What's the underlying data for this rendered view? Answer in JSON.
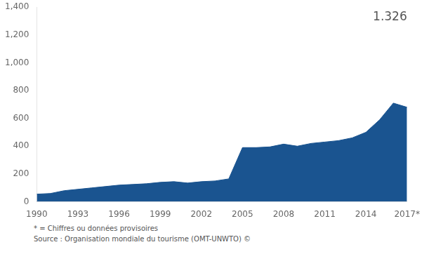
{
  "chart_data": {
    "type": "area",
    "x": [
      1990,
      1991,
      1992,
      1993,
      1994,
      1995,
      1996,
      1997,
      1998,
      1999,
      2000,
      2001,
      2002,
      2003,
      2004,
      2005,
      2006,
      2007,
      2008,
      2009,
      2010,
      2011,
      2012,
      2013,
      2014,
      2015,
      2016,
      2017
    ],
    "values": [
      55,
      60,
      80,
      90,
      100,
      110,
      120,
      125,
      130,
      140,
      145,
      135,
      145,
      150,
      165,
      390,
      390,
      395,
      415,
      400,
      420,
      430,
      440,
      460,
      500,
      590,
      710,
      680
    ],
    "color": "#1a5490",
    "xlim": [
      1990,
      2017
    ],
    "xticks": [
      1990,
      1993,
      1996,
      1999,
      2002,
      2005,
      2008,
      2011,
      2014,
      {
        "value": 2017,
        "label": "2017*"
      }
    ],
    "ylim": [
      0,
      1400
    ],
    "yticks": [
      0,
      200,
      400,
      600,
      800,
      {
        "value": 1000,
        "label": "1,000"
      },
      {
        "value": 1200,
        "label": "1,200"
      },
      {
        "value": 1400,
        "label": "1,400"
      }
    ],
    "grid": false,
    "annotations": [
      {
        "x": 2017,
        "y": 1370,
        "text": "1.326"
      }
    ],
    "footnotes": [
      "* = Chiffres ou données provisoires",
      "Source : Organisation mondiale du tourisme (OMT-UNWTO) ©"
    ]
  }
}
